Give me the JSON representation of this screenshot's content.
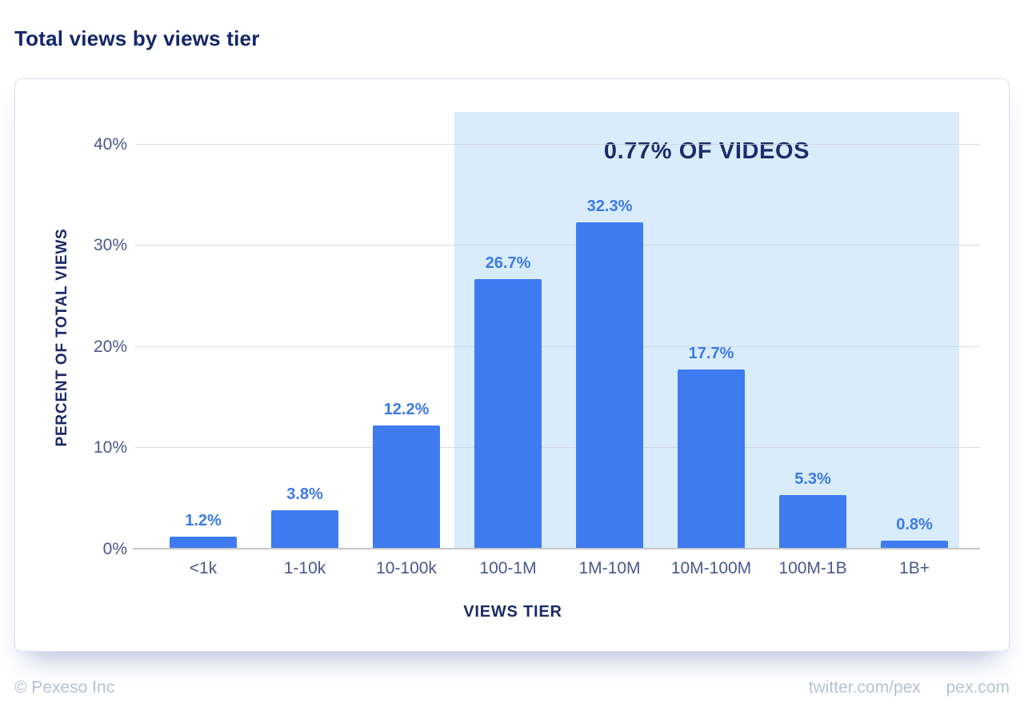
{
  "page": {
    "title": "Total views by views tier",
    "footer_left": "© Pexeso Inc",
    "footer_right_twitter": "twitter.com/pex",
    "footer_right_site": "pex.com"
  },
  "chart_data": {
    "type": "bar",
    "title": "Total views by views tier",
    "categories": [
      "<1k",
      "1-10k",
      "10-100k",
      "100-1M",
      "1M-10M",
      "10M-100M",
      "100M-1B",
      "1B+"
    ],
    "values": [
      1.2,
      3.8,
      12.2,
      26.7,
      32.3,
      17.7,
      5.3,
      0.8
    ],
    "value_labels": [
      "1.2%",
      "3.8%",
      "12.2%",
      "26.7%",
      "32.3%",
      "17.7%",
      "5.3%",
      "0.8%"
    ],
    "xlabel": "VIEWS TIER",
    "ylabel": "PERCENT OF TOTAL VIEWS",
    "yticks": [
      0,
      10,
      20,
      30,
      40
    ],
    "ytick_labels": [
      "0%",
      "10%",
      "20%",
      "30%",
      "40%"
    ],
    "ylim": [
      0,
      43.2
    ],
    "grid": "horizontal-only",
    "legend": "none",
    "highlight": {
      "label": "0.77% OF VIDEOS",
      "from_category": "100-1M",
      "to_category": "1B+",
      "color": "#d9ecfb"
    },
    "colors": {
      "bar": "#3e7bf0",
      "value_label": "#3d7ae9",
      "tick_label": "#4c588c",
      "axis_title": "#1b2a66",
      "page_title": "#14266b",
      "annotation": "#1a2c6b",
      "highlight_bg": "#d9ecfb",
      "footer_text": "#b9c0d5"
    }
  }
}
